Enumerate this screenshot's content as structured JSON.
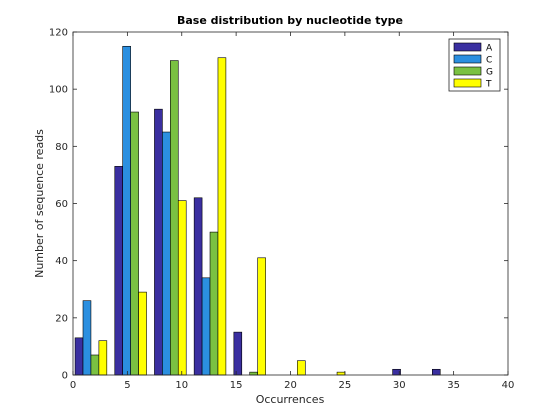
{
  "chart_data": {
    "type": "bar",
    "title": "Base distribution by nucleotide type",
    "xlabel": "Occurrences",
    "ylabel": "Number of sequence reads",
    "xlim": [
      0,
      40
    ],
    "ylim": [
      0,
      120
    ],
    "xticks": [
      0,
      5,
      10,
      15,
      20,
      25,
      30,
      35,
      40
    ],
    "yticks": [
      0,
      20,
      40,
      60,
      80,
      100,
      120
    ],
    "grid": false,
    "legend_position": "top-right",
    "x": [
      1.65,
      5.3,
      8.95,
      12.6,
      16.25,
      19.9,
      23.55,
      27.2,
      30.85,
      34.5
    ],
    "series": [
      {
        "name": "A",
        "color": "#3a2fa0",
        "values": [
          13,
          73,
          93,
          62,
          15,
          0,
          0,
          0,
          2,
          2
        ]
      },
      {
        "name": "C",
        "color": "#2b8fe0",
        "values": [
          26,
          115,
          85,
          34,
          0,
          0,
          0,
          0,
          0,
          0
        ]
      },
      {
        "name": "G",
        "color": "#7ac142",
        "values": [
          7,
          92,
          110,
          50,
          1,
          0,
          0,
          0,
          0,
          0
        ]
      },
      {
        "name": "T",
        "color": "#ffff00",
        "values": [
          12,
          29,
          61,
          111,
          41,
          5,
          1,
          0,
          0,
          0
        ]
      }
    ]
  }
}
